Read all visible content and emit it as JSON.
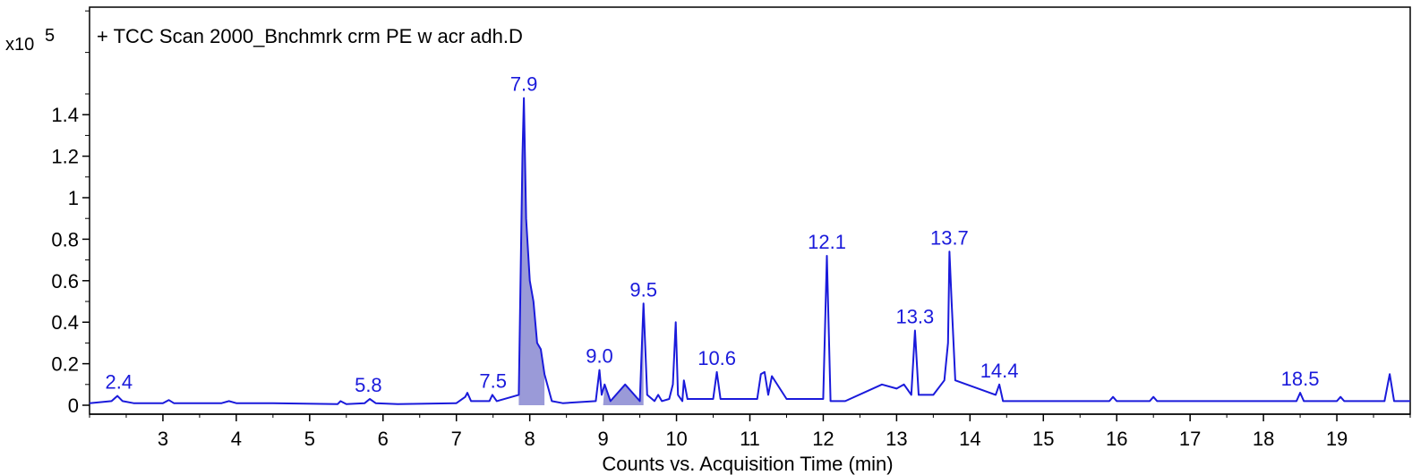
{
  "chart_data": {
    "type": "line",
    "title": "+ TCC Scan 2000_Bnchmrk crm PE w acr adh.D",
    "xlabel": "Counts vs. Acquisition Time (min)",
    "ylabel": "",
    "y_scale_label": "x10",
    "y_scale_exponent": "5",
    "xlim": [
      2.0,
      20.0
    ],
    "ylim": [
      0,
      1.55
    ],
    "x_ticks": [
      3,
      4,
      5,
      6,
      7,
      8,
      9,
      10,
      11,
      12,
      13,
      14,
      15,
      16,
      17,
      18,
      19
    ],
    "x_tick_labels": [
      "3",
      "4",
      "5",
      "6",
      "7",
      "8",
      "9",
      "10",
      "11",
      "12",
      "13",
      "14",
      "15",
      "16",
      "17",
      "18",
      "19"
    ],
    "y_ticks": [
      0,
      0.2,
      0.4,
      0.6,
      0.8,
      1.0,
      1.2,
      1.4
    ],
    "y_tick_labels": [
      "0",
      "0.2",
      "0.4",
      "0.6",
      "0.8",
      "1",
      "1.2",
      "1.4"
    ],
    "line_color": "#1a1adb",
    "fill_color": "#9a9ad8",
    "series": [
      {
        "x": [
          2.0,
          2.3,
          2.38,
          2.45,
          2.6,
          3.0,
          3.08,
          3.15,
          3.8,
          3.9,
          4.0,
          4.5,
          5.38,
          5.42,
          5.5,
          5.75,
          5.82,
          5.9,
          6.2,
          7.0,
          7.12,
          7.15,
          7.2,
          7.45,
          7.49,
          7.55,
          7.85,
          7.9,
          7.92,
          7.95,
          8.0,
          8.05,
          8.1,
          8.15,
          8.2,
          8.3,
          8.45,
          8.9,
          8.95,
          8.98,
          9.02,
          9.1,
          9.3,
          9.5,
          9.53,
          9.55,
          9.6,
          9.7,
          9.75,
          9.8,
          9.9,
          9.95,
          9.99,
          10.02,
          10.08,
          10.1,
          10.15,
          10.25,
          10.5,
          10.55,
          10.6,
          11.1,
          11.15,
          11.2,
          11.25,
          11.3,
          11.5,
          12.0,
          12.05,
          12.1,
          12.3,
          12.8,
          13.0,
          13.1,
          13.2,
          13.25,
          13.3,
          13.5,
          13.65,
          13.7,
          13.72,
          13.75,
          13.8,
          14.35,
          14.4,
          14.45,
          15.9,
          15.95,
          16.0,
          16.45,
          16.5,
          16.55,
          18.2,
          18.45,
          18.5,
          18.55,
          19.0,
          19.05,
          19.1,
          19.65,
          19.72,
          19.78,
          20.0
        ],
        "y": [
          0.01,
          0.02,
          0.045,
          0.02,
          0.01,
          0.01,
          0.025,
          0.01,
          0.01,
          0.02,
          0.01,
          0.01,
          0.005,
          0.02,
          0.005,
          0.01,
          0.03,
          0.01,
          0.005,
          0.01,
          0.04,
          0.06,
          0.02,
          0.02,
          0.05,
          0.02,
          0.05,
          1.2,
          1.48,
          0.9,
          0.6,
          0.5,
          0.3,
          0.27,
          0.15,
          0.02,
          0.01,
          0.02,
          0.17,
          0.05,
          0.1,
          0.02,
          0.1,
          0.02,
          0.3,
          0.49,
          0.05,
          0.02,
          0.05,
          0.02,
          0.03,
          0.1,
          0.4,
          0.05,
          0.02,
          0.12,
          0.03,
          0.03,
          0.03,
          0.16,
          0.03,
          0.03,
          0.15,
          0.16,
          0.05,
          0.14,
          0.03,
          0.03,
          0.72,
          0.02,
          0.02,
          0.1,
          0.08,
          0.1,
          0.05,
          0.36,
          0.05,
          0.05,
          0.12,
          0.3,
          0.74,
          0.5,
          0.12,
          0.05,
          0.1,
          0.02,
          0.02,
          0.04,
          0.02,
          0.02,
          0.04,
          0.02,
          0.02,
          0.02,
          0.06,
          0.02,
          0.02,
          0.04,
          0.02,
          0.02,
          0.15,
          0.02,
          0.02
        ]
      }
    ],
    "shaded_regions": [
      {
        "x": [
          7.85,
          8.2
        ]
      },
      {
        "x": [
          9.0,
          9.55
        ]
      }
    ],
    "annotations": [
      {
        "text": "2.4",
        "x": 2.4,
        "y": 0.045
      },
      {
        "text": "5.8",
        "x": 5.8,
        "y": 0.03
      },
      {
        "text": "7.5",
        "x": 7.5,
        "y": 0.05
      },
      {
        "text": "7.9",
        "x": 7.92,
        "y": 1.48
      },
      {
        "text": "9.0",
        "x": 8.95,
        "y": 0.17
      },
      {
        "text": "9.5",
        "x": 9.55,
        "y": 0.49
      },
      {
        "text": "10.6",
        "x": 10.55,
        "y": 0.16
      },
      {
        "text": "12.1",
        "x": 12.05,
        "y": 0.72
      },
      {
        "text": "13.3",
        "x": 13.25,
        "y": 0.36
      },
      {
        "text": "13.7",
        "x": 13.72,
        "y": 0.74
      },
      {
        "text": "14.4",
        "x": 14.4,
        "y": 0.1
      },
      {
        "text": "18.5",
        "x": 18.5,
        "y": 0.06
      }
    ],
    "grid": false,
    "legend": "none"
  }
}
